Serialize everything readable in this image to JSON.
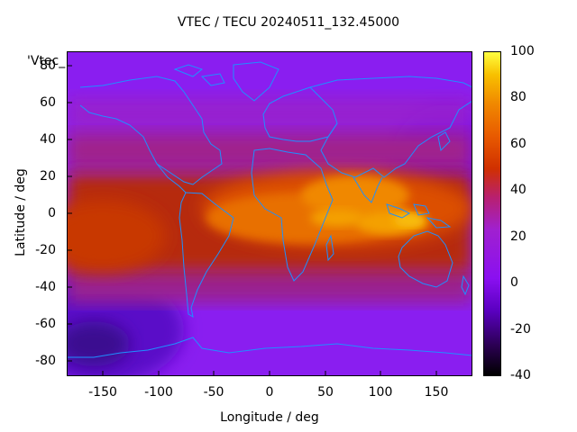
{
  "title": "VTEC / TECU 20240511_132.45000",
  "stray_label": "'Vtec_",
  "x_axis": {
    "label": "Longitude / deg",
    "ticks": [
      "-150",
      "-100",
      "-50",
      "0",
      "50",
      "100",
      "150"
    ],
    "range": [
      -180,
      180
    ]
  },
  "y_axis": {
    "label": "Latitude / deg",
    "ticks": [
      "80",
      "60",
      "40",
      "20",
      "0",
      "-20",
      "-40",
      "-60",
      "-80"
    ],
    "range": [
      -88,
      88
    ]
  },
  "colorbar": {
    "ticks": [
      "100",
      "80",
      "60",
      "40",
      "20",
      "0",
      "-20",
      "-40"
    ],
    "range": [
      -40,
      100
    ],
    "palette": "black-purple-red-orange-yellow"
  },
  "colors": {
    "land_outline": "#1e90ff",
    "background_field": "#8a20e0"
  }
}
